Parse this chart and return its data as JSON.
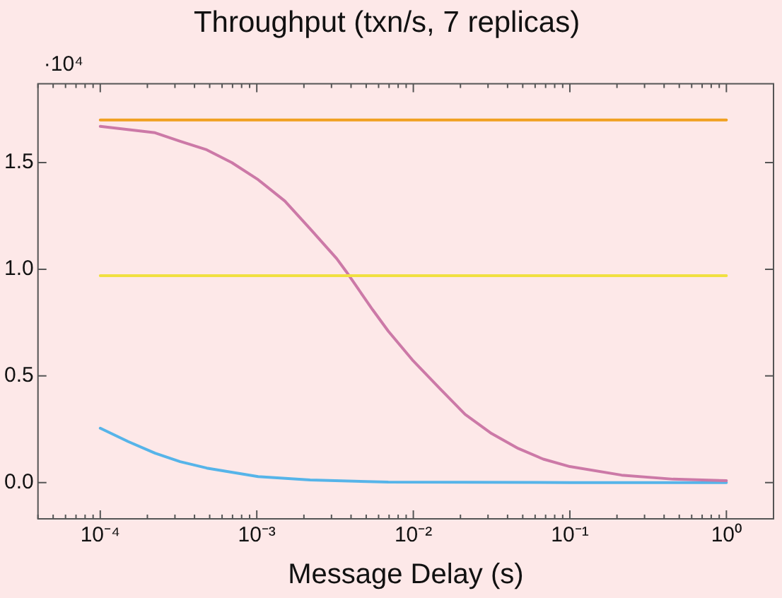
{
  "chart_data": {
    "type": "line",
    "title": "Throughput (txn/s, 7 replicas)",
    "xlabel": "Message Delay (s)",
    "log": "x",
    "grid": false,
    "legend": false,
    "marker": "none",
    "line_style": "solid",
    "annotations": [
      "·10⁴"
    ],
    "xlim": [
      4e-05,
      2
    ],
    "ylim": [
      -0.17,
      1.87
    ],
    "xticks": [
      {
        "value": 0.0001,
        "label": "10⁻⁴"
      },
      {
        "value": 0.001,
        "label": "10⁻³"
      },
      {
        "value": 0.01,
        "label": "10⁻²"
      },
      {
        "value": 0.1,
        "label": "10⁻¹"
      },
      {
        "value": 1,
        "label": "10⁰"
      }
    ],
    "yticks": [
      {
        "value": 0,
        "label": "0.0"
      },
      0.5,
      {
        "value": 1,
        "label": "1.0"
      },
      1.5
    ],
    "series": [
      {
        "color": "#f0a020",
        "x": [
          0.0001,
          1
        ],
        "values": [
          1.7,
          1.7
        ]
      },
      {
        "color": "#f0e040",
        "x": [
          0.0001,
          1
        ],
        "values": [
          0.97,
          0.97
        ]
      },
      {
        "color": "#cc79a7",
        "x": [
          0.0001,
          0.000224,
          0.000324,
          0.000479,
          0.000692,
          0.00102,
          0.00151,
          0.00219,
          0.00324,
          0.00372,
          0.0055,
          0.00692,
          0.01,
          0.0148,
          0.0214,
          0.0316,
          0.0468,
          0.0676,
          0.1,
          0.214,
          0.457,
          1
        ],
        "values": [
          1.67,
          1.64,
          1.6,
          1.56,
          1.5,
          1.42,
          1.32,
          1.19,
          1.05,
          0.99,
          0.81,
          0.71,
          0.57,
          0.44,
          0.32,
          0.23,
          0.16,
          0.11,
          0.075,
          0.035,
          0.016,
          0.009
        ]
      },
      {
        "color": "#56b4e9",
        "x": [
          0.0001,
          0.000151,
          0.000224,
          0.000324,
          0.000479,
          0.00102,
          0.00219,
          0.00692,
          0.1,
          1
        ],
        "values": [
          0.255,
          0.192,
          0.138,
          0.098,
          0.068,
          0.028,
          0.012,
          0.002,
          0,
          0
        ]
      }
    ]
  }
}
